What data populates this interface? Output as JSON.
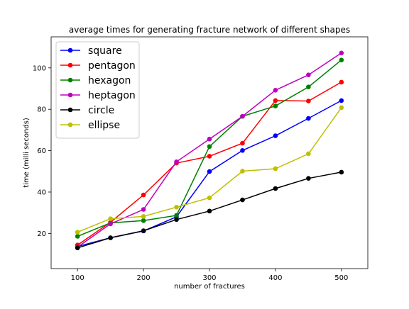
{
  "chart_data": {
    "type": "line",
    "title": "average times for generating fracture network of different shapes",
    "xlabel": "number of fractures",
    "ylabel": "time (milli seconds)",
    "xlim": [
      60,
      540
    ],
    "ylim": [
      3,
      115
    ],
    "xticks": [
      100,
      200,
      300,
      400,
      500
    ],
    "yticks": [
      20,
      40,
      60,
      80,
      100
    ],
    "legend_position": "top-left",
    "grid": false,
    "x": [
      100,
      150,
      200,
      250,
      300,
      350,
      400,
      450,
      500
    ],
    "series": [
      {
        "name": "square",
        "color": "#0000ff",
        "values": [
          13.7,
          17.9,
          21.2,
          28.0,
          49.9,
          60.1,
          67.2,
          75.6,
          84.2
        ]
      },
      {
        "name": "pentagon",
        "color": "#ff0000",
        "values": [
          14.4,
          25.4,
          38.6,
          54.0,
          57.3,
          63.6,
          84.2,
          84.0,
          93.1
        ]
      },
      {
        "name": "hexagon",
        "color": "#008000",
        "values": [
          18.6,
          25.1,
          26.2,
          28.7,
          62.0,
          76.6,
          81.6,
          90.8,
          103.8
        ]
      },
      {
        "name": "heptagon",
        "color": "#bf00bf",
        "values": [
          13.4,
          24.6,
          31.6,
          54.6,
          65.6,
          76.6,
          89.2,
          96.6,
          107.2
        ]
      },
      {
        "name": "circle",
        "color": "#000000",
        "values": [
          13.0,
          17.9,
          21.3,
          26.7,
          30.8,
          36.2,
          41.7,
          46.6,
          49.6
        ]
      },
      {
        "name": "ellipse",
        "color": "#bfbf00",
        "values": [
          20.6,
          27.1,
          28.2,
          32.7,
          37.2,
          50.1,
          51.3,
          58.5,
          80.8
        ]
      }
    ]
  }
}
